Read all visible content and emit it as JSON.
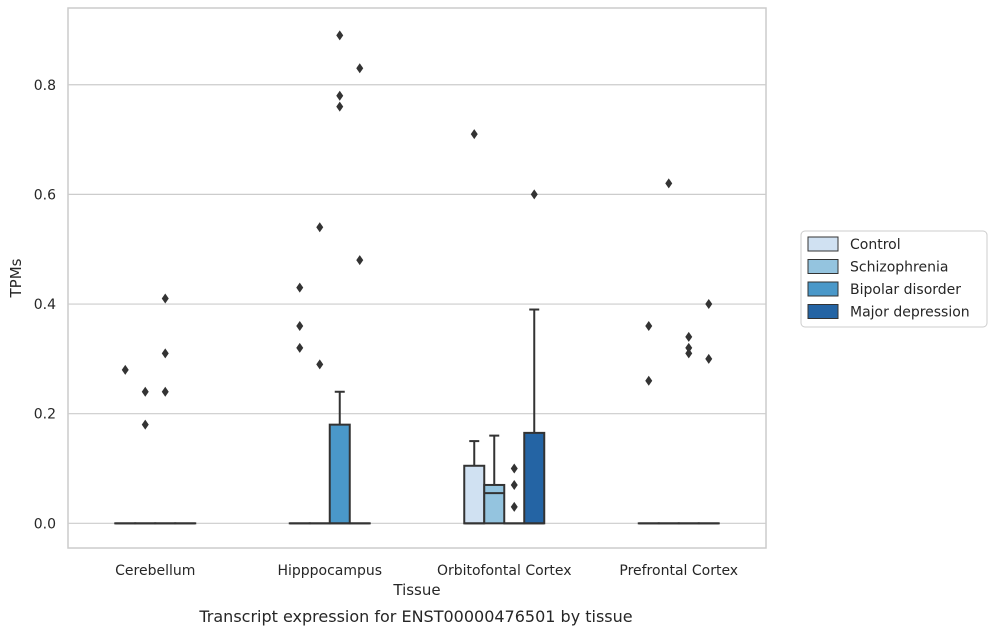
{
  "chart_data": {
    "type": "box",
    "title": "",
    "caption": "Transcript expression for ENST00000476501 by tissue",
    "xlabel": "Tissue",
    "ylabel": "TPMs",
    "ylim": [
      -0.045,
      0.94
    ],
    "yticks": [
      0.0,
      0.2,
      0.4,
      0.6,
      0.8
    ],
    "ytick_labels": [
      "0.0",
      "0.2",
      "0.4",
      "0.6",
      "0.8"
    ],
    "grid": "horizontal",
    "legend_position": "right",
    "categories": [
      "Cerebellum",
      "Hipppocampus",
      "Orbitofontal Cortex",
      "Prefrontal Cortex"
    ],
    "series": [
      {
        "name": "Control",
        "color": "#d0e1f2",
        "boxes": [
          {
            "q1": 0,
            "median": 0,
            "q3": 0,
            "whisker_low": 0,
            "whisker_high": 0,
            "outliers": [
              0.28
            ]
          },
          {
            "q1": 0,
            "median": 0,
            "q3": 0,
            "whisker_low": 0,
            "whisker_high": 0,
            "outliers": [
              0.43,
              0.36,
              0.32
            ]
          },
          {
            "q1": 0,
            "median": 0,
            "q3": 0.105,
            "whisker_low": 0,
            "whisker_high": 0.15,
            "outliers": [
              0.71
            ]
          },
          {
            "q1": 0,
            "median": 0,
            "q3": 0,
            "whisker_low": 0,
            "whisker_high": 0,
            "outliers": [
              0.36,
              0.26
            ]
          }
        ]
      },
      {
        "name": "Schizophrenia",
        "color": "#94c4df",
        "boxes": [
          {
            "q1": 0,
            "median": 0,
            "q3": 0,
            "whisker_low": 0,
            "whisker_high": 0,
            "outliers": [
              0.24,
              0.18
            ]
          },
          {
            "q1": 0,
            "median": 0,
            "q3": 0,
            "whisker_low": 0,
            "whisker_high": 0,
            "outliers": [
              0.54,
              0.29
            ]
          },
          {
            "q1": 0,
            "median": 0.055,
            "q3": 0.07,
            "whisker_low": 0,
            "whisker_high": 0.16,
            "outliers": []
          },
          {
            "q1": 0,
            "median": 0,
            "q3": 0,
            "whisker_low": 0,
            "whisker_high": 0,
            "outliers": [
              0.62
            ]
          }
        ]
      },
      {
        "name": "Bipolar disorder",
        "color": "#4a98c9",
        "boxes": [
          {
            "q1": 0,
            "median": 0,
            "q3": 0,
            "whisker_low": 0,
            "whisker_high": 0,
            "outliers": [
              0.41,
              0.31,
              0.24
            ]
          },
          {
            "q1": 0,
            "median": 0,
            "q3": 0.18,
            "whisker_low": 0,
            "whisker_high": 0.24,
            "outliers": [
              0.89,
              0.78,
              0.76
            ]
          },
          {
            "q1": 0,
            "median": 0,
            "q3": 0,
            "whisker_low": 0,
            "whisker_high": 0,
            "outliers": [
              0.1,
              0.07,
              0.03
            ]
          },
          {
            "q1": 0,
            "median": 0,
            "q3": 0,
            "whisker_low": 0,
            "whisker_high": 0,
            "outliers": [
              0.34,
              0.32,
              0.31
            ]
          }
        ]
      },
      {
        "name": "Major depression",
        "color": "#2464a4",
        "boxes": [
          {
            "q1": 0,
            "median": 0,
            "q3": 0,
            "whisker_low": 0,
            "whisker_high": 0,
            "outliers": []
          },
          {
            "q1": 0,
            "median": 0,
            "q3": 0,
            "whisker_low": 0,
            "whisker_high": 0,
            "outliers": [
              0.83,
              0.48
            ]
          },
          {
            "q1": 0,
            "median": 0,
            "q3": 0.165,
            "whisker_low": 0,
            "whisker_high": 0.39,
            "outliers": [
              0.6
            ]
          },
          {
            "q1": 0,
            "median": 0,
            "q3": 0,
            "whisker_low": 0,
            "whisker_high": 0,
            "outliers": [
              0.4,
              0.3
            ]
          }
        ]
      }
    ],
    "colors": {
      "grid": "#cccccc",
      "frame": "#cccccc",
      "box_edge": "#333333",
      "outlier": "#333333"
    }
  }
}
